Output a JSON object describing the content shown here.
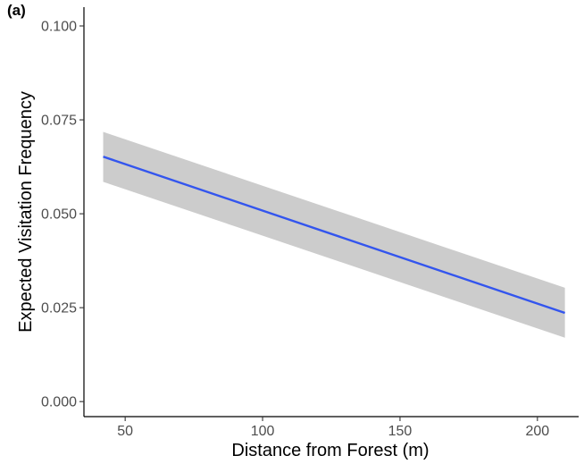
{
  "chart_data": {
    "type": "line",
    "panel_label": "(a)",
    "xlabel": "Distance from Forest (m)",
    "ylabel": "Expected Visitation Frequency",
    "xlim": [
      35,
      215
    ],
    "ylim": [
      -0.004,
      0.105
    ],
    "x_ticks": [
      50,
      100,
      150,
      200
    ],
    "y_ticks": [
      0.0,
      0.025,
      0.05,
      0.075,
      0.1
    ],
    "x_tick_labels": [
      "50",
      "100",
      "150",
      "200"
    ],
    "y_tick_labels": [
      "0.000",
      "0.025",
      "0.050",
      "0.075",
      "0.100"
    ],
    "grid": false,
    "series": [
      {
        "x": [
          42,
          210
        ],
        "y": [
          0.0652,
          0.0236
        ],
        "color": "#3355ee",
        "ci_lower": [
          0.0585,
          0.017
        ],
        "ci_upper": [
          0.0718,
          0.0303
        ],
        "ci_color": "#cccccc"
      }
    ]
  }
}
